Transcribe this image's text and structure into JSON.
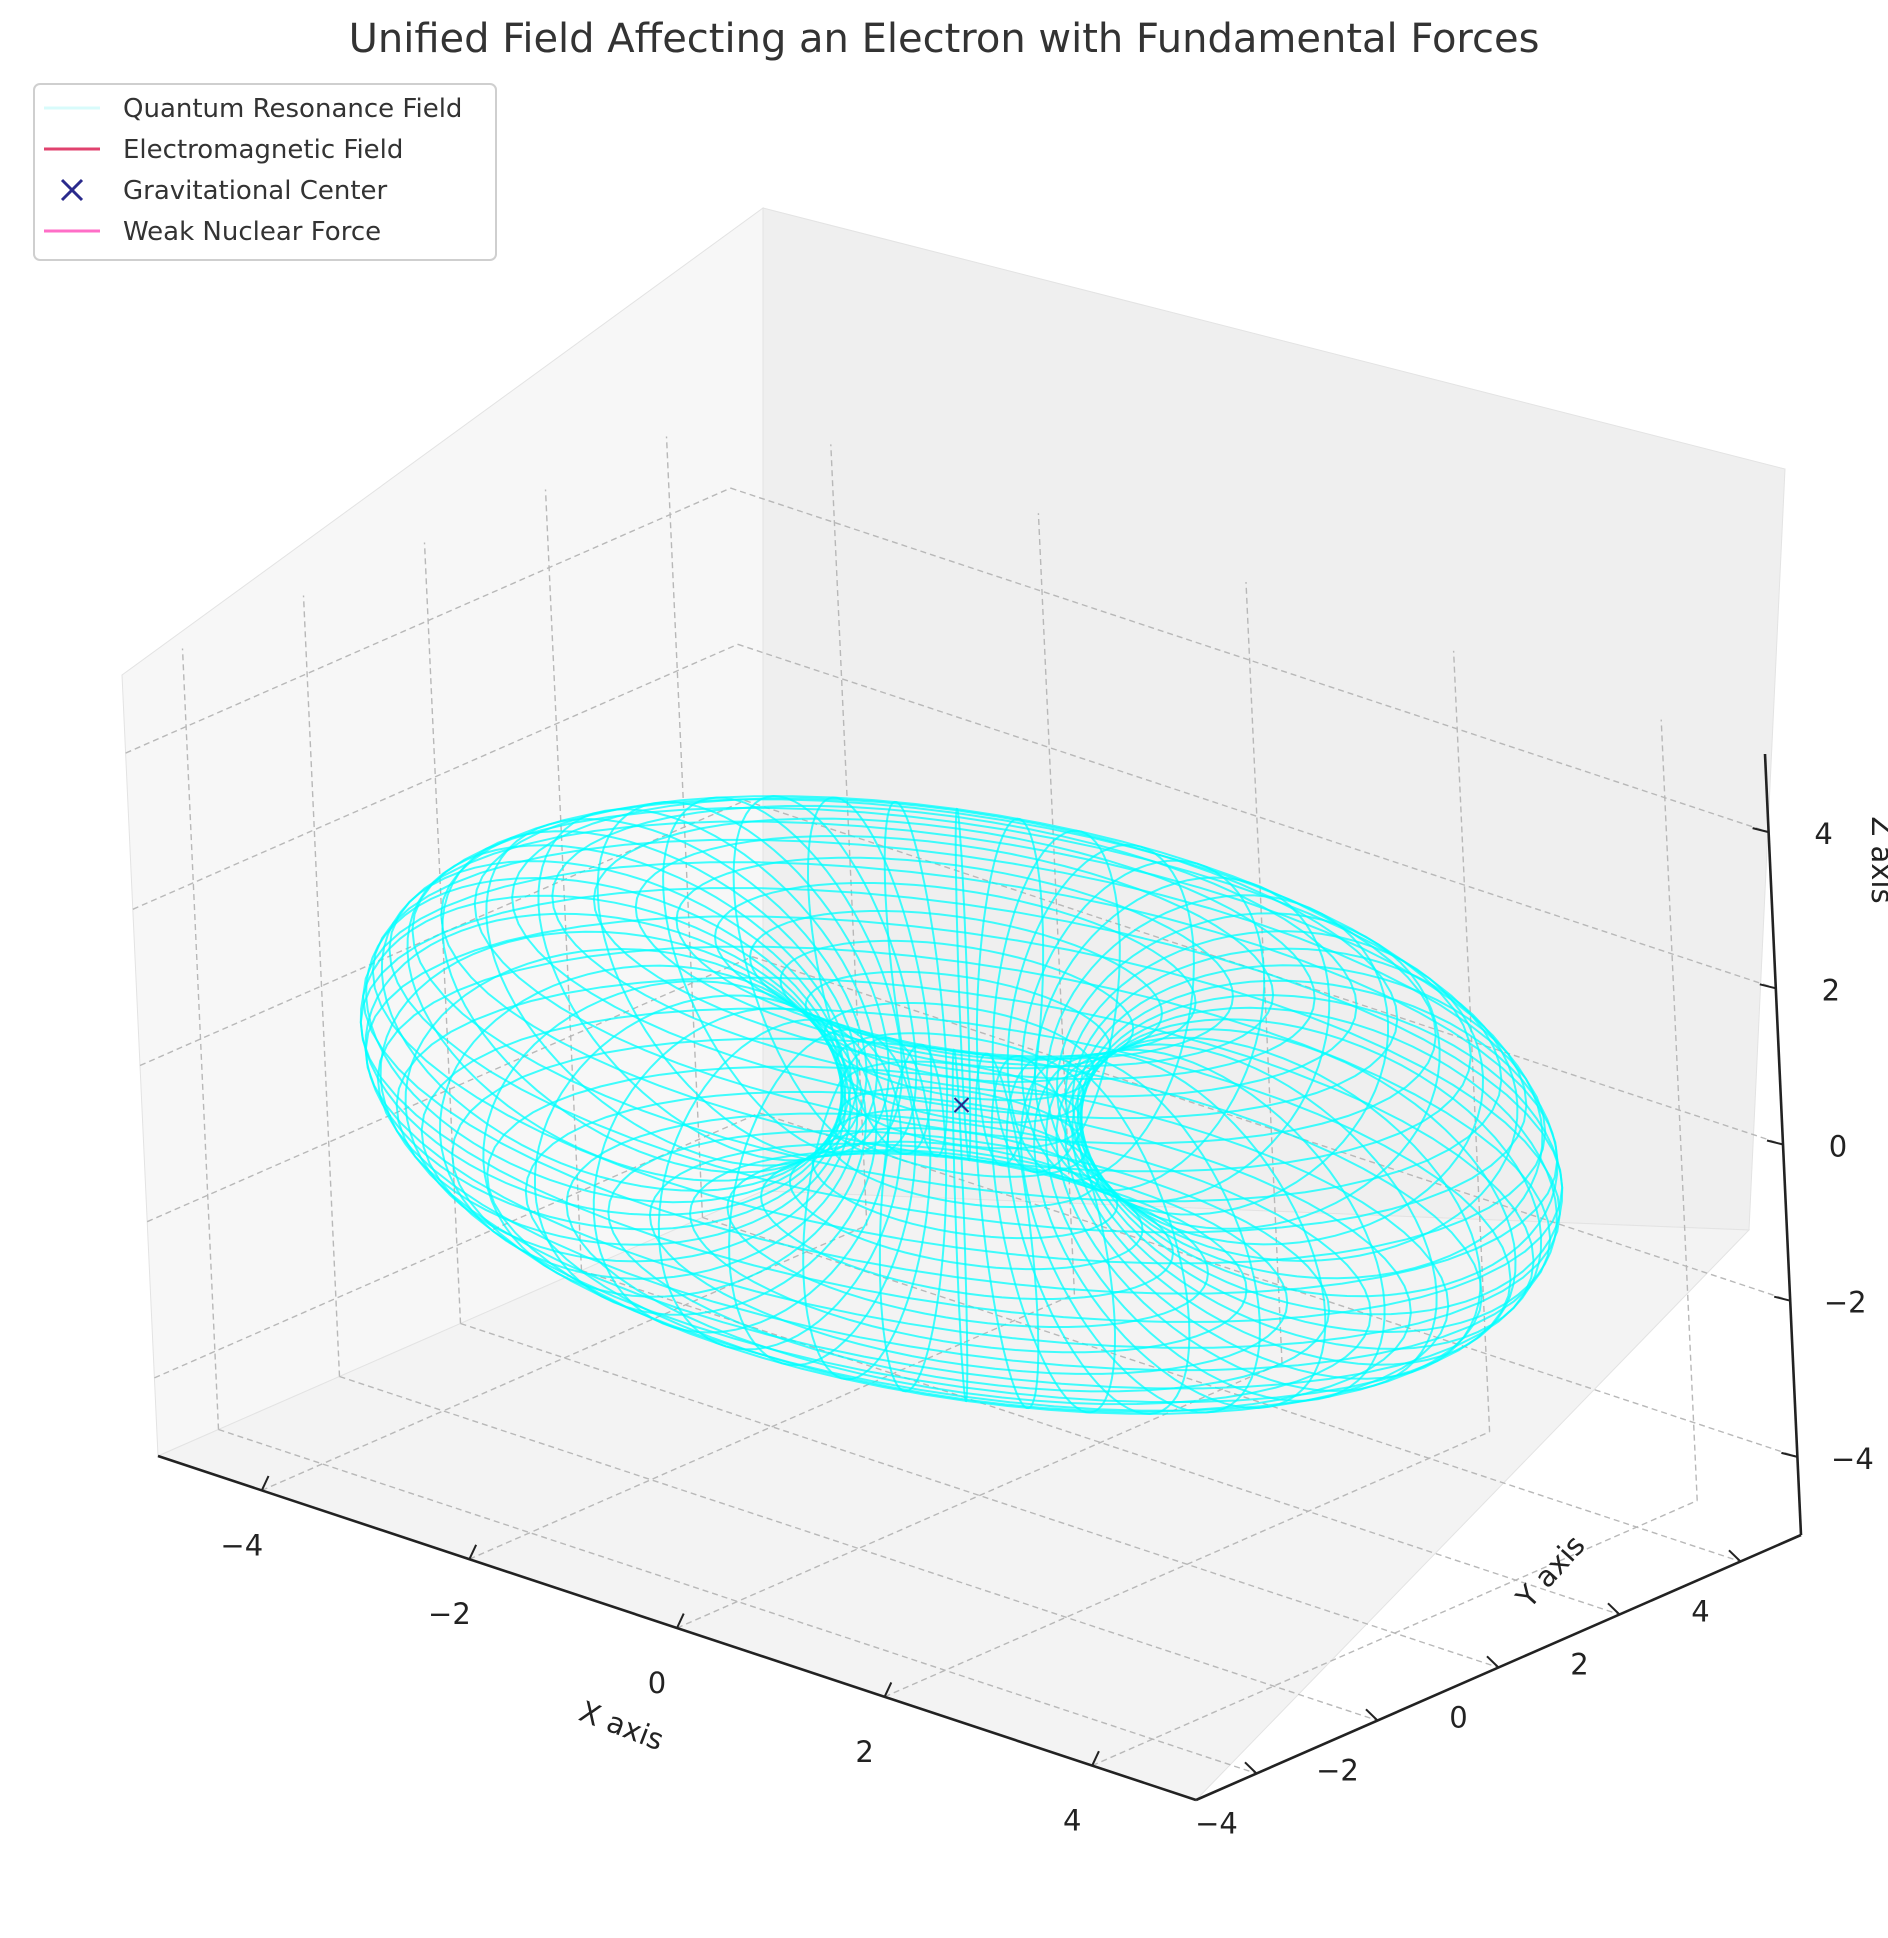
{
  "chart_data": {
    "type": "3d-wireframe",
    "title": "Unified Field Affecting an Electron with Fundamental Forces",
    "xlabel": "X axis",
    "ylabel": "Y axis",
    "zlabel": "Z axis",
    "xlim": [
      -5,
      5
    ],
    "ylim": [
      -5,
      5
    ],
    "zlim": [
      -5,
      5
    ],
    "x_ticks": [
      -4,
      -2,
      0,
      2,
      4
    ],
    "y_ticks": [
      -4,
      -2,
      0,
      2,
      4
    ],
    "z_ticks": [
      -4,
      -2,
      0,
      2,
      4
    ],
    "tick_labels": {
      "x": [
        "−4",
        "−2",
        "0",
        "2",
        "4"
      ],
      "y": [
        "−4",
        "−2",
        "0",
        "2",
        "4"
      ],
      "z": [
        "−4",
        "−2",
        "0",
        "2",
        "4"
      ]
    },
    "grid": true,
    "legend_position": "top-left",
    "legend": [
      {
        "label": "Quantum Resonance Field",
        "color": "#d8fbfb",
        "marker": "line"
      },
      {
        "label": "Electromagnetic Field",
        "color": "#e0426e",
        "marker": "line"
      },
      {
        "label": "Gravitational Center",
        "color": "#2a2a8c",
        "marker": "x"
      },
      {
        "label": "Weak Nuclear Force",
        "color": "#ff6ec7",
        "marker": "line"
      }
    ],
    "surface": {
      "name": "Quantum Resonance Field",
      "shape": "torus",
      "major_radius": 3,
      "minor_radius": 2,
      "center": [
        0,
        0,
        0
      ],
      "color": "#00ffff"
    },
    "gravitational_center": [
      0,
      0,
      0
    ]
  }
}
